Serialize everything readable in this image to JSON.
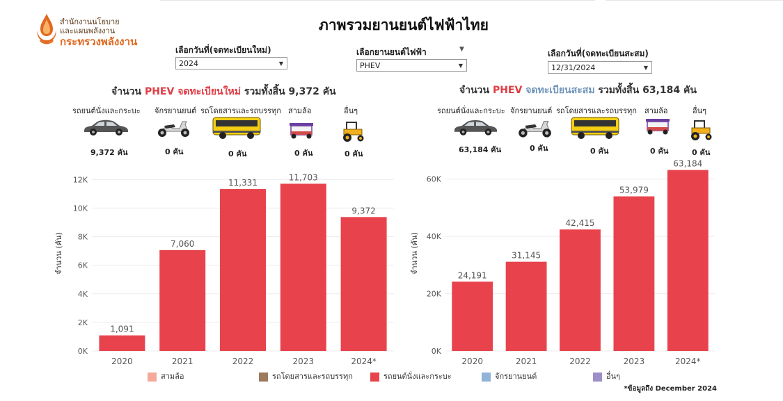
{
  "header": {
    "logo_line1": "สำนักงานนโยบาย",
    "logo_line2": "และแผนพลังงาน",
    "logo_line3": "กระทรวงพลังงาน",
    "title": "ภาพรวมยานยนต์ไฟฟ้าไทย"
  },
  "filters": {
    "date_new_label": "เลือกวันที่(จดทะเบียนใหม่)",
    "date_new_value": "2024",
    "ev_type_label": "เลือกยานยนต์ไฟฟ้า",
    "ev_type_value": "PHEV",
    "date_cum_label": "เลือกวันที่(จดทะเบียนสะสม)",
    "date_cum_value": "12/31/2024"
  },
  "left_panel": {
    "headline_prefix": "จำนวน",
    "headline_type": "PHEV",
    "headline_mode": "จดทะเบียนใหม่",
    "headline_suffix": "รวมทั้งสิ้น 9,372 คัน",
    "categories": [
      {
        "label": "รถยนต์นั่งและกระบะ",
        "count": "9,372 คัน",
        "icon": "car-icon"
      },
      {
        "label": "จักรยานยนต์",
        "count": "0 คัน",
        "icon": "motorcycle-icon"
      },
      {
        "label": "รถโดยสารและรถบรรทุก",
        "count": "0 คัน",
        "icon": "bus-icon"
      },
      {
        "label": "สามล้อ",
        "count": "0 คัน",
        "icon": "tuk-tuk-icon"
      },
      {
        "label": "อื่นๆ",
        "count": "0 คัน",
        "icon": "tractor-icon"
      }
    ],
    "ylabel": "จำนวน (คัน)"
  },
  "right_panel": {
    "headline_prefix": "จำนวน",
    "headline_type": "PHEV",
    "headline_mode": "จดทะเบียนสะสม",
    "headline_suffix": "รวมทั้งสิ้น 63,184 คัน",
    "categories": [
      {
        "label": "รถยนต์นั่งและกระบะ",
        "count": "63,184 คัน",
        "icon": "car-icon"
      },
      {
        "label": "จักรยานยนต์",
        "count": "0 คัน",
        "icon": "motorcycle-icon"
      },
      {
        "label": "รถโดยสารและรถบรรทุก",
        "count": "0 คัน",
        "icon": "bus-icon"
      },
      {
        "label": "สามล้อ",
        "count": "0 คัน",
        "icon": "tuk-tuk-icon"
      },
      {
        "label": "อื่นๆ",
        "count": "0 คัน",
        "icon": "tractor-icon"
      }
    ],
    "ylabel": "จำนวน (คัน)"
  },
  "legend": [
    {
      "label": "สามล้อ",
      "color": "#f4a99b"
    },
    {
      "label": "รถโดยสารและรถบรรทุก",
      "color": "#9c7a5c"
    },
    {
      "label": "รถยนต์นั่งและกระบะ",
      "color": "#e8434c"
    },
    {
      "label": "จักรยานยนต์",
      "color": "#90b4d8"
    },
    {
      "label": "อื่นๆ",
      "color": "#9d8ec9"
    }
  ],
  "footnote": "*ข้อมูลถึง December 2024",
  "chart_data": [
    {
      "type": "bar",
      "categories": [
        "2020",
        "2021",
        "2022",
        "2023",
        "2024*"
      ],
      "series": [
        {
          "name": "รถยนต์นั่งและกระบะ",
          "values": [
            1091,
            7060,
            11331,
            11703,
            9372
          ]
        }
      ],
      "data_labels": [
        "1,091",
        "7,060",
        "11,331",
        "11,703",
        "9,372"
      ],
      "ylabel": "จำนวน (คัน)",
      "yticks": [
        0,
        2000,
        4000,
        6000,
        8000,
        10000,
        12000
      ],
      "ytick_labels": [
        "0K",
        "2K",
        "4K",
        "6K",
        "8K",
        "10K",
        "12K"
      ],
      "ylim": [
        0,
        12500
      ],
      "grid": true,
      "color": "#e8434c"
    },
    {
      "type": "bar",
      "categories": [
        "2020",
        "2021",
        "2022",
        "2023",
        "2024*"
      ],
      "series": [
        {
          "name": "รถยนต์นั่งและกระบะ",
          "values": [
            24191,
            31145,
            42415,
            53979,
            63184
          ]
        }
      ],
      "data_labels": [
        "24,191",
        "31,145",
        "42,415",
        "53,979",
        "63,184"
      ],
      "ylabel": "จำนวน (คัน)",
      "yticks": [
        0,
        20000,
        40000,
        60000
      ],
      "ytick_labels": [
        "0K",
        "20K",
        "40K",
        "60K"
      ],
      "ylim": [
        0,
        66000
      ],
      "grid": true,
      "color": "#e8434c"
    }
  ]
}
